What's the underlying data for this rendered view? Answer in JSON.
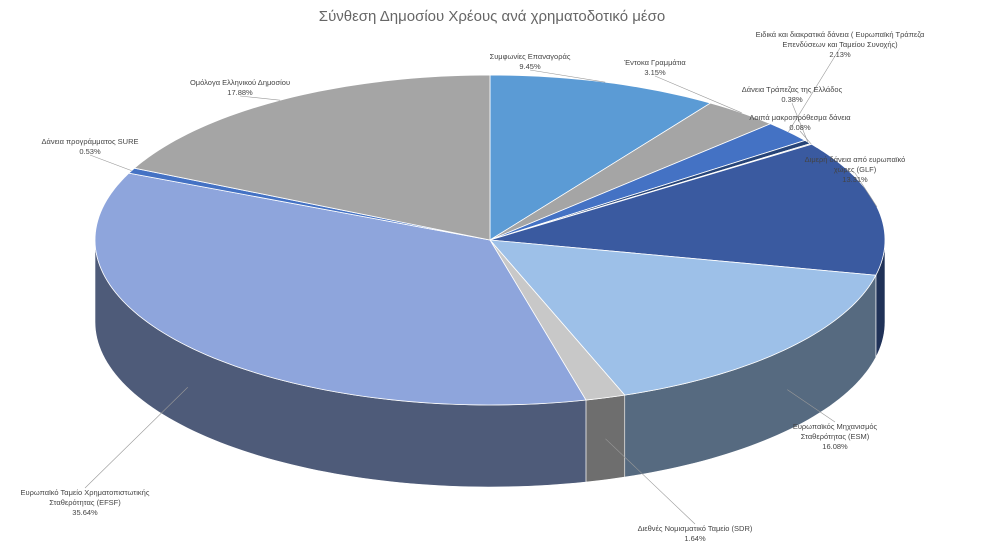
{
  "chart_data": {
    "type": "pie",
    "title": "Σύνθεση Δημοσίου Χρέους ανά χρηματοδοτικό μέσο",
    "categories": [
      "Συμφωνίες Επαναγοράς",
      "Έντοκα Γραμμάτια",
      "Ειδικά και διακρατικά δάνεια ( Ευρωπαϊκή Τράπεζα Επενδύσεων και Ταμείου Συνοχής)",
      "Δάνεια Τράπεζας της Ελλάδος",
      "Λοιπά μακροπρόθεσμα δάνεια",
      "Διμερή δάνεια από ευρωπαϊκό χώρες (GLF)",
      "Ευρωπαϊκός Μηχανισμός Σταθερότητας (ESM)",
      "Διεθνές Νομισματικό Ταμείο (SDR)",
      "Ευρωπαϊκό Ταμείο Χρηματοπιστωτικής Σταθερότητας (EFSF)",
      "Δάνεια προγράμματος SURE",
      "Ομόλογα Ελληνικού Δημοσίου"
    ],
    "values": [
      9.45,
      3.15,
      2.13,
      0.38,
      0.08,
      13.31,
      16.08,
      1.64,
      35.64,
      0.53,
      17.88
    ],
    "value_labels": [
      "9.45%",
      "3.15%",
      "2.13%",
      "0.38%",
      "0.08%",
      "13.31%",
      "16.08%",
      "1.64%",
      "35.64%",
      "0.53%",
      "17.88%"
    ],
    "colors": [
      "#5b9bd5",
      "#a5a5a5",
      "#4472c4",
      "#264478",
      "#7f7f7f",
      "#3a5aa0",
      "#9dc0e8",
      "#c8c8c8",
      "#8ea5dc",
      "#4472c4",
      "#a5a5a5"
    ]
  }
}
